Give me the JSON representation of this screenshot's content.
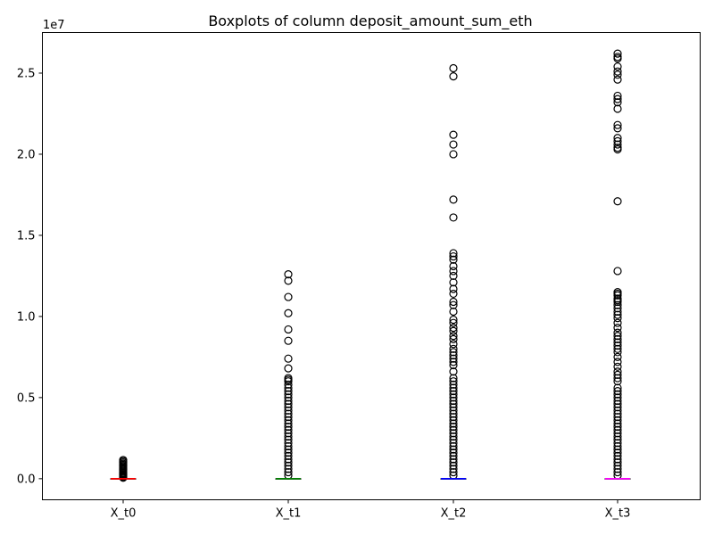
{
  "chart_data": {
    "type": "boxplot",
    "title": "Boxplots of column deposit_amount_sum_eth",
    "xlabel": "",
    "ylabel": "",
    "y_offset_label": "1e7",
    "ylim": [
      -1300000,
      27500000
    ],
    "yticks": [
      0,
      5000000,
      10000000,
      15000000,
      20000000,
      25000000
    ],
    "ytick_labels": [
      "0.0",
      "0.5",
      "1.0",
      "1.5",
      "2.0",
      "2.5"
    ],
    "grid": false,
    "categories": [
      "X_t0",
      "X_t1",
      "X_t2",
      "X_t3"
    ],
    "series": [
      {
        "category": "X_t0",
        "median_color": "#ff0000",
        "box": {
          "q1": 0,
          "median": 0,
          "q3": 0
        },
        "whisker_low": 0,
        "whisker_high": 0,
        "outliers": [
          1150000,
          1080000,
          1000000,
          920000,
          850000,
          780000,
          700000,
          630000,
          560000,
          490000,
          420000,
          350000,
          290000,
          230000,
          170000,
          110000,
          60000
        ]
      },
      {
        "category": "X_t1",
        "median_color": "#008000",
        "box": {
          "q1": 0,
          "median": 0,
          "q3": 0
        },
        "whisker_low": 0,
        "whisker_high": 0,
        "outliers": [
          12600000,
          12200000,
          11200000,
          10200000,
          9200000,
          8500000,
          7400000,
          6800000,
          6200000,
          6100000,
          6000000,
          5800000,
          5600000,
          5400000,
          5200000,
          5000000,
          4800000,
          4600000,
          4400000,
          4200000,
          4000000,
          3800000,
          3600000,
          3400000,
          3200000,
          3000000,
          2800000,
          2600000,
          2400000,
          2200000,
          2000000,
          1800000,
          1600000,
          1400000,
          1200000,
          1000000,
          800000,
          600000,
          400000,
          200000
        ]
      },
      {
        "category": "X_t2",
        "median_color": "#0000ff",
        "box": {
          "q1": 0,
          "median": 0,
          "q3": 0
        },
        "whisker_low": 0,
        "whisker_high": 0,
        "outliers": [
          25300000,
          24800000,
          21200000,
          20600000,
          20000000,
          17200000,
          16100000,
          13900000,
          13700000,
          13500000,
          13100000,
          12800000,
          12500000,
          12100000,
          11700000,
          11400000,
          10900000,
          10700000,
          10300000,
          9800000,
          9600000,
          9300000,
          9100000,
          8800000,
          8600000,
          8300000,
          8000000,
          7800000,
          7600000,
          7400000,
          7200000,
          7000000,
          6600000,
          6200000,
          6000000,
          5800000,
          5600000,
          5400000,
          5200000,
          5000000,
          4800000,
          4600000,
          4400000,
          4200000,
          4000000,
          3800000,
          3600000,
          3400000,
          3200000,
          3000000,
          2800000,
          2600000,
          2400000,
          2200000,
          2000000,
          1800000,
          1600000,
          1400000,
          1200000,
          1000000,
          800000,
          600000,
          400000,
          200000
        ]
      },
      {
        "category": "X_t3",
        "median_color": "#ff00ff",
        "box": {
          "q1": 0,
          "median": 0,
          "q3": 0
        },
        "whisker_low": 0,
        "whisker_high": 0,
        "outliers": [
          26200000,
          26000000,
          25900000,
          25400000,
          25100000,
          24900000,
          24600000,
          23600000,
          23400000,
          23200000,
          22800000,
          21800000,
          21600000,
          21000000,
          20800000,
          20600000,
          20400000,
          20300000,
          17100000,
          12800000,
          11500000,
          11400000,
          11300000,
          11100000,
          11000000,
          10900000,
          10700000,
          10500000,
          10300000,
          10100000,
          9900000,
          9600000,
          9300000,
          9000000,
          8800000,
          8600000,
          8400000,
          8200000,
          8000000,
          7800000,
          7500000,
          7200000,
          6900000,
          6600000,
          6400000,
          6200000,
          6000000,
          5600000,
          5400000,
          5200000,
          5000000,
          4800000,
          4600000,
          4400000,
          4200000,
          4000000,
          3800000,
          3600000,
          3400000,
          3200000,
          3000000,
          2800000,
          2600000,
          2400000,
          2200000,
          2000000,
          1800000,
          1600000,
          1400000,
          1200000,
          1000000,
          800000,
          600000,
          400000,
          200000
        ]
      }
    ]
  }
}
